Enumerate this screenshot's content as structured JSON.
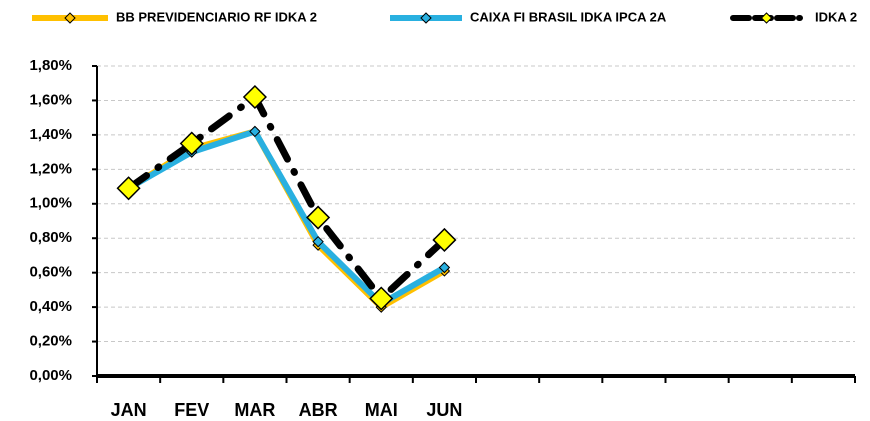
{
  "chart_data": {
    "type": "line",
    "categories": [
      "JAN",
      "FEV",
      "MAR",
      "ABR",
      "MAI",
      "JUN",
      null,
      null,
      null,
      null,
      null,
      null
    ],
    "series": [
      {
        "name": "BB PREVIDENCIARIO RF IDKA 2",
        "color": "#ffc000",
        "values": [
          1.09,
          1.32,
          1.42,
          0.76,
          0.4,
          0.61,
          null,
          null,
          null,
          null,
          null,
          null
        ]
      },
      {
        "name": "CAIXA FI BRASIL IDKA IPCA 2A",
        "color": "#29b0e0",
        "values": [
          1.09,
          1.3,
          1.42,
          0.78,
          0.42,
          0.63,
          null,
          null,
          null,
          null,
          null,
          null
        ]
      },
      {
        "name": "IDKA 2",
        "color": "#000000",
        "marker_color": "#ffff00",
        "dashed": true,
        "values": [
          1.09,
          1.35,
          1.62,
          0.92,
          0.45,
          0.79,
          null,
          null,
          null,
          null,
          null,
          null
        ]
      }
    ],
    "ylim": [
      0,
      1.8
    ],
    "yticks": [
      {
        "value": 0,
        "label": "0,00%"
      },
      {
        "value": 0.2,
        "label": "0,20%"
      },
      {
        "value": 0.4,
        "label": "0,40%"
      },
      {
        "value": 0.6,
        "label": "0,60%"
      },
      {
        "value": 0.8,
        "label": "0,80%"
      },
      {
        "value": 1.0,
        "label": "1,00%"
      },
      {
        "value": 1.2,
        "label": "1,20%"
      },
      {
        "value": 1.4,
        "label": "1,40%"
      },
      {
        "value": 1.6,
        "label": "1,60%"
      },
      {
        "value": 1.8,
        "label": "1,80%"
      }
    ],
    "grid": true,
    "legend": "top"
  }
}
